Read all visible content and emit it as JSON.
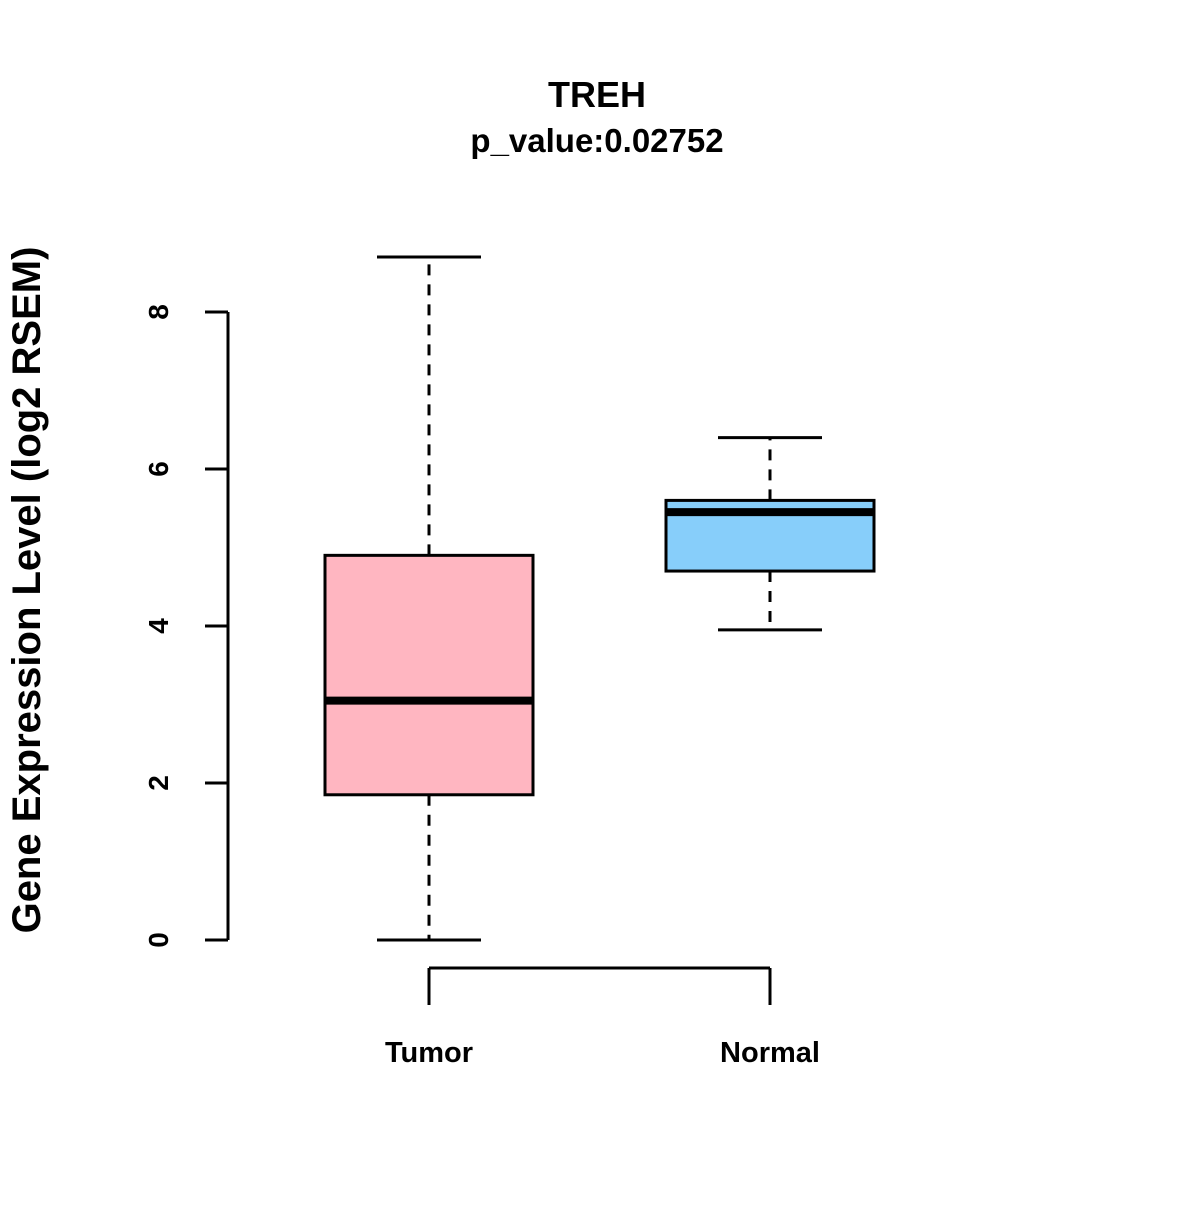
{
  "chart_data": {
    "type": "boxplot",
    "title": "TREH",
    "subtitle": "p_value:0.02752",
    "ylabel": "Gene Expression Level (log2 RSEM)",
    "xlabel": "",
    "ylim": [
      0,
      8
    ],
    "yticks": [
      0,
      2,
      4,
      6,
      8
    ],
    "grid": false,
    "legend": "none",
    "groups": [
      {
        "label": "Tumor",
        "color": "#FFB6C1",
        "whisker_low": 0.0,
        "q1": 1.85,
        "median": 3.05,
        "q3": 4.9,
        "whisker_high": 8.7
      },
      {
        "label": "Normal",
        "color": "#87CEFA",
        "whisker_low": 3.95,
        "q1": 4.7,
        "median": 5.45,
        "q3": 5.6,
        "whisker_high": 6.4
      }
    ]
  },
  "style": {
    "axis_color": "#000000",
    "box_border_color": "#000000",
    "median_color": "#000000",
    "background": "#ffffff"
  }
}
